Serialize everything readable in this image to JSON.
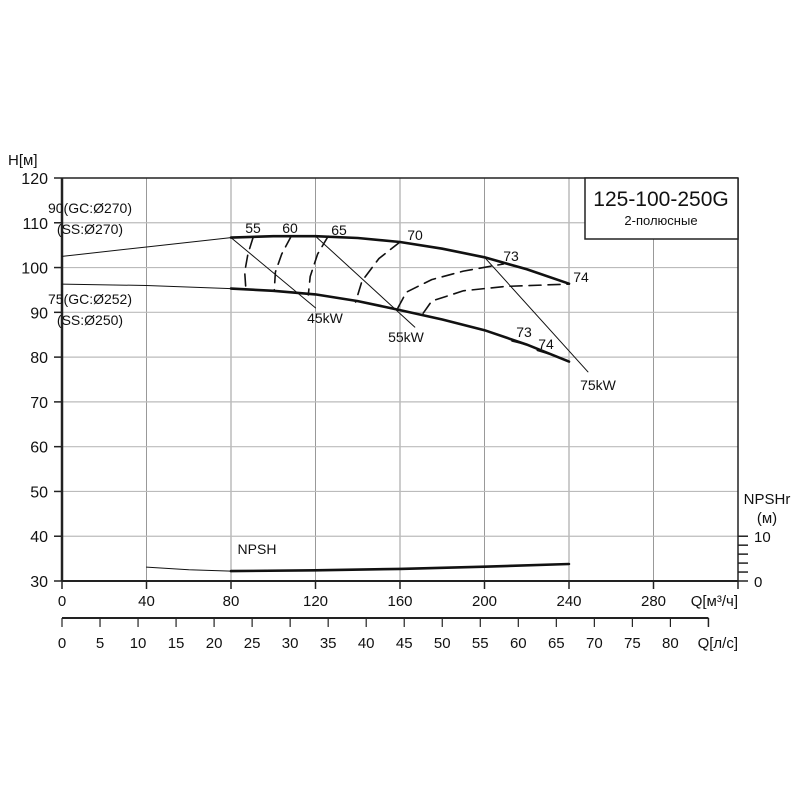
{
  "chart_data": {
    "type": "line",
    "title": "125-100-250G",
    "subtitle": "2-полюсные",
    "ylabel": "H[м]",
    "xlabel": "Q[м³/ч]",
    "x2label": "Q[л/с]",
    "y2label_line1": "NPSHr",
    "y2label_line2": "(м)",
    "xlim": [
      0,
      320
    ],
    "ylim": [
      30,
      120
    ],
    "x_ticks": [
      0,
      40,
      80,
      120,
      160,
      200,
      240,
      280
    ],
    "y_ticks": [
      30,
      40,
      50,
      60,
      70,
      80,
      90,
      100,
      110,
      120
    ],
    "x2_ticks": [
      0,
      5,
      10,
      15,
      20,
      25,
      30,
      35,
      40,
      45,
      50,
      55,
      60,
      65,
      70,
      75,
      80
    ],
    "x2lim": [
      0,
      85
    ],
    "y2_ticks_labeled": [
      0,
      10
    ],
    "y2_ticks_minor": [
      2,
      4,
      6,
      8
    ],
    "grid": true,
    "series": [
      {
        "name": "90(GC:Ø270)",
        "line_style": "thin",
        "x": [
          0,
          40,
          80
        ],
        "y": [
          102.5,
          104.6,
          106.7
        ]
      },
      {
        "name": "90(GC:Ø270)",
        "line_style": "thick",
        "x": [
          80,
          100,
          120,
          140,
          160,
          180,
          200,
          220,
          240
        ],
        "y": [
          106.7,
          107,
          107,
          106.6,
          105.7,
          104.2,
          102.3,
          99.6,
          96.4
        ]
      },
      {
        "name": "75(GC:Ø252)",
        "line_style": "thin",
        "x": [
          0,
          40,
          80
        ],
        "y": [
          96.3,
          96,
          95.3
        ]
      },
      {
        "name": "75(GC:Ø252)",
        "line_style": "thick",
        "x": [
          80,
          100,
          120,
          140,
          160,
          180,
          200,
          220,
          240
        ],
        "y": [
          95.3,
          94.8,
          94,
          92.5,
          90.5,
          88.4,
          86,
          82.8,
          79
        ]
      },
      {
        "name": "55",
        "line_style": "dashed",
        "x": [
          90.5,
          88,
          86.5,
          87
        ],
        "y": [
          106.8,
          103,
          99,
          95.4
        ]
      },
      {
        "name": "60",
        "line_style": "dashed",
        "x": [
          108.5,
          104,
          101,
          100.5
        ],
        "y": [
          107,
          103,
          99,
          95
        ]
      },
      {
        "name": "65",
        "line_style": "dashed",
        "x": [
          126,
          121,
          117.5,
          116.6
        ],
        "y": [
          107,
          103,
          98,
          93.9
        ]
      },
      {
        "name": "70",
        "line_style": "dashed",
        "x": [
          160,
          150,
          142,
          139
        ],
        "y": [
          105.7,
          102,
          97,
          92.3
        ]
      },
      {
        "name": "73",
        "line_style": "dashed",
        "x": [
          159,
          163,
          175,
          190,
          209
        ],
        "y": [
          91,
          94.5,
          97.3,
          99.2,
          100.8
        ]
      },
      {
        "name": "74",
        "line_style": "dashed",
        "x": [
          171,
          175,
          190,
          210,
          240
        ],
        "y": [
          89.8,
          92.5,
          94.8,
          95.8,
          96.3
        ]
      },
      {
        "name": "73",
        "line_style": "dashed",
        "x": [
          213,
          220
        ],
        "y": [
          83.6,
          82.8
        ]
      },
      {
        "name": "74",
        "line_style": "dashed",
        "x": [
          225,
          232
        ],
        "y": [
          81.5,
          80.5
        ]
      },
      {
        "name": "45kW",
        "line_style": "thin",
        "x": [
          80,
          120
        ],
        "y": [
          106.7,
          91
        ]
      },
      {
        "name": "55kW",
        "line_style": "thin",
        "x": [
          120,
          167
        ],
        "y": [
          107,
          86.7
        ]
      },
      {
        "name": "75kW",
        "line_style": "thin",
        "x": [
          200,
          249
        ],
        "y": [
          102.3,
          76.7
        ]
      },
      {
        "name": "NPSH",
        "line_style": "thin",
        "x": [
          40,
          60,
          80
        ],
        "y": [
          33.1,
          32.5,
          32.2
        ]
      },
      {
        "name": "NPSH",
        "line_style": "thick",
        "x": [
          80,
          120,
          160,
          200,
          240
        ],
        "y": [
          32.2,
          32.4,
          32.7,
          33.2,
          33.8
        ]
      }
    ],
    "annotations": [
      "90(GC:Ø270)",
      "(SS:Ø270)",
      "75(GC:Ø252)",
      "(SS:Ø250)",
      "55",
      "60",
      "65",
      "70",
      "73",
      "74",
      "73",
      "74",
      "45kW",
      "55kW",
      "75kW",
      "NPSH"
    ]
  }
}
